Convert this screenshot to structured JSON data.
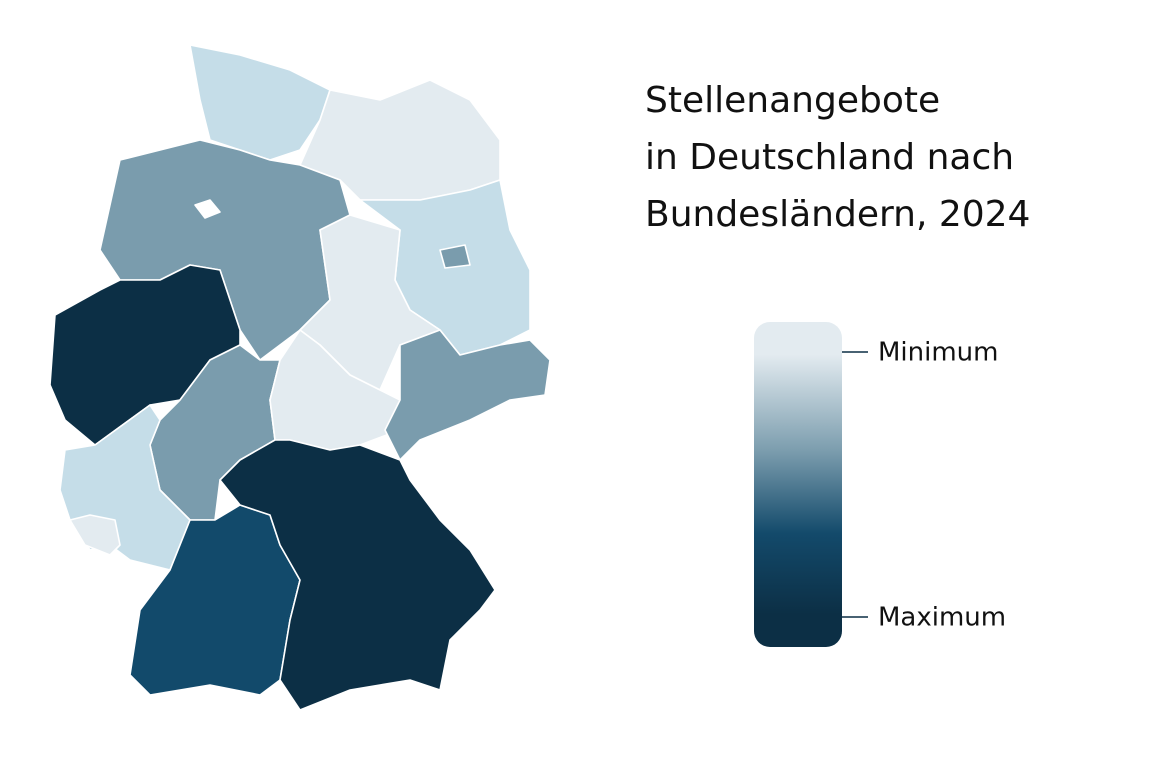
{
  "title": [
    "Stellenangebote",
    "in Deutschland nach",
    "Bundesländern, 2024"
  ],
  "legend": {
    "min_label": "Minimum",
    "max_label": "Maximum"
  }
}
